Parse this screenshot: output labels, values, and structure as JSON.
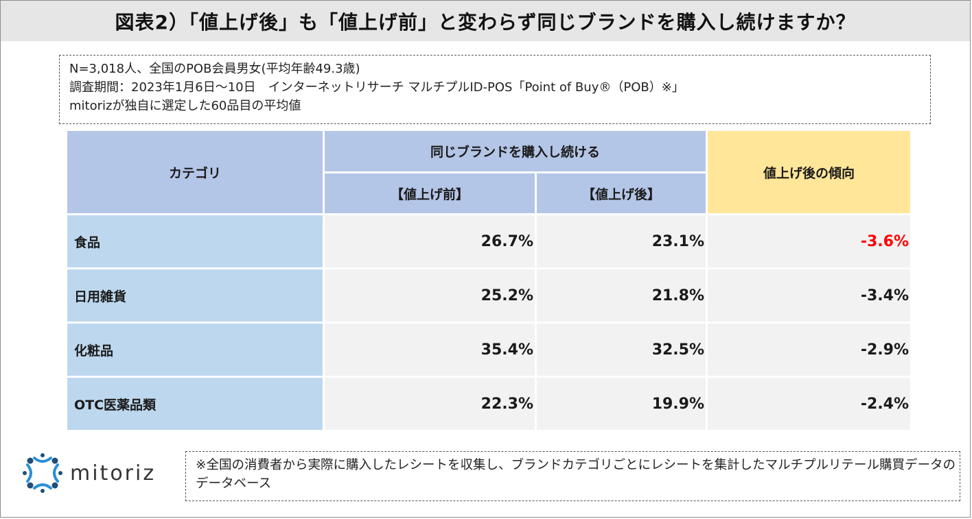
{
  "title": "図表2）「値上げ後」も「値上げ前」と変わらず同じブランドを購入し続けますか？",
  "info_lines": [
    "N=3,018人、全国のPOB会員男女(平均年齢49.3歳)",
    "調査期間：2023年1月6日〜10日　インターネットリサーチ マルチプルID-POS「Point of Buy®（POB）※」",
    "mitorizが独自に選定した60品目の平均値"
  ],
  "chart_data": {
    "type": "table",
    "headers": {
      "category": "カテゴリ",
      "group": "同じブランドを購入し続ける",
      "before": "【値上げ前】",
      "after": "【値上げ後】",
      "trend": "値上げ後の傾向"
    },
    "rows": [
      {
        "category": "食品",
        "before": "26.7%",
        "after": "23.1%",
        "trend": "-3.6%",
        "highlight": true
      },
      {
        "category": "日用雑貨",
        "before": "25.2%",
        "after": "21.8%",
        "trend": "-3.4%",
        "highlight": false
      },
      {
        "category": "化粧品",
        "before": "35.4%",
        "after": "32.5%",
        "trend": "-2.9%",
        "highlight": false
      },
      {
        "category": "OTC医薬品類",
        "before": "22.3%",
        "after": "19.9%",
        "trend": "-2.4%",
        "highlight": false
      }
    ]
  },
  "logo": {
    "text": "mitoriz",
    "icon": "mitoriz-logo-icon",
    "color": "#2a8fd6"
  },
  "note": "※全国の消費者から実際に購入したレシートを収集し、ブランドカテゴリごとにレシートを集計したマルチプルリテール購買データのデータベース",
  "colors": {
    "header_blue": "#b4c6e7",
    "header_yellow": "#ffe699",
    "category_blue": "#bdd7ee",
    "value_gray": "#f2f2f2",
    "highlight_red": "#ff0000"
  }
}
